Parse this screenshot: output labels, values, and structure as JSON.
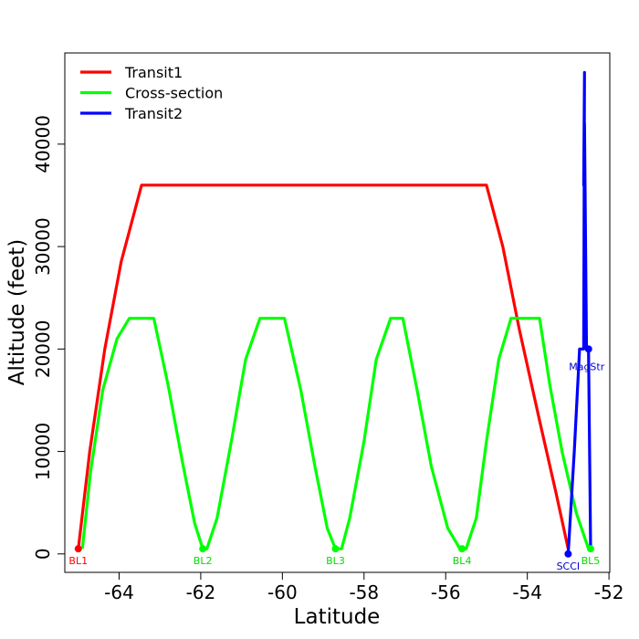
{
  "chart_data": {
    "type": "line",
    "title": "",
    "xlabel": "Latitude",
    "ylabel": "Altitude (feet)",
    "xlim": [
      -65.33,
      -51.98
    ],
    "ylim": [
      -1800,
      48900
    ],
    "x_ticks": [
      -64,
      -62,
      -60,
      -58,
      -56,
      -54,
      -52
    ],
    "x_tick_labels": [
      "-64",
      "-62",
      "-60",
      "-58",
      "-56",
      "-54",
      "-52"
    ],
    "y_ticks": [
      0,
      10000,
      20000,
      30000,
      40000
    ],
    "y_tick_labels": [
      "0",
      "10000",
      "20000",
      "30000",
      "40000"
    ],
    "grid": false,
    "legend": {
      "position": "top-left",
      "entries": [
        {
          "label": "Transit1",
          "color": "#ff0000"
        },
        {
          "label": "Cross-section",
          "color": "#00ff00"
        },
        {
          "label": "Transit2",
          "color": "#0000ff"
        }
      ]
    },
    "series": [
      {
        "name": "Transit1",
        "color": "#ff0000",
        "x": [
          -65.0,
          -64.72,
          -64.35,
          -63.95,
          -63.45,
          -55.0,
          -54.6,
          -54.2,
          -53.7,
          -53.3,
          -53.0
        ],
        "y": [
          500,
          10000,
          20000,
          28500,
          36000,
          36000,
          30000,
          22000,
          13000,
          6000,
          500
        ]
      },
      {
        "name": "Cross-section",
        "color": "#00ff00",
        "x": [
          -64.9,
          -64.7,
          -64.4,
          -64.05,
          -63.75,
          -63.15,
          -62.8,
          -62.45,
          -62.15,
          -61.95,
          -61.85,
          -61.6,
          -61.25,
          -60.9,
          -60.55,
          -60.25,
          -59.95,
          -59.55,
          -59.2,
          -58.9,
          -58.7,
          -58.55,
          -58.35,
          -58.0,
          -57.7,
          -57.35,
          -57.05,
          -56.7,
          -56.35,
          -55.95,
          -55.65,
          -55.5,
          -55.25,
          -55.0,
          -54.7,
          -54.4,
          -54.1,
          -53.7,
          -53.45,
          -53.15,
          -52.8,
          -52.5
        ],
        "y": [
          500,
          8000,
          16000,
          21000,
          23000,
          23000,
          16500,
          9000,
          3000,
          500,
          500,
          3500,
          11000,
          19000,
          23000,
          23000,
          23000,
          16000,
          8500,
          2500,
          500,
          500,
          3500,
          11000,
          19000,
          23000,
          23000,
          16000,
          8500,
          2500,
          500,
          500,
          3500,
          11000,
          19000,
          23000,
          23000,
          23000,
          16500,
          10000,
          4000,
          500
        ]
      },
      {
        "name": "Transit2",
        "color": "#0000ff",
        "x": [
          -53.0,
          -52.85,
          -52.72,
          -52.62,
          -52.6,
          -52.62,
          -52.6,
          -52.55,
          -52.5,
          -52.45
        ],
        "y": [
          0,
          10000,
          20000,
          20000,
          47000,
          36000,
          42000,
          20000,
          20000,
          500
        ]
      }
    ],
    "point_labels": [
      {
        "text": "BL1",
        "x": -65.0,
        "y": 500,
        "color": "#ff0000"
      },
      {
        "text": "BL2",
        "x": -61.95,
        "y": 500,
        "color": "#00dd00"
      },
      {
        "text": "BL3",
        "x": -58.7,
        "y": 500,
        "color": "#00dd00"
      },
      {
        "text": "BL4",
        "x": -55.6,
        "y": 500,
        "color": "#00dd00"
      },
      {
        "text": "BL5",
        "x": -52.45,
        "y": 500,
        "color": "#00dd00"
      },
      {
        "text": "SCCI",
        "x": -53.0,
        "y": 0,
        "color": "#0000cc"
      },
      {
        "text": "MagStr",
        "x": -52.5,
        "y": 20000,
        "color": "#0000cc"
      }
    ],
    "markers": [
      {
        "x": -65.0,
        "y": 500,
        "color": "#ff0000"
      },
      {
        "x": -61.95,
        "y": 500,
        "color": "#00ff00"
      },
      {
        "x": -58.7,
        "y": 500,
        "color": "#00ff00"
      },
      {
        "x": -55.6,
        "y": 500,
        "color": "#00ff00"
      },
      {
        "x": -52.45,
        "y": 500,
        "color": "#00ff00"
      },
      {
        "x": -53.0,
        "y": 0,
        "color": "#0000ff"
      },
      {
        "x": -52.5,
        "y": 20000,
        "color": "#0000ff"
      }
    ]
  }
}
